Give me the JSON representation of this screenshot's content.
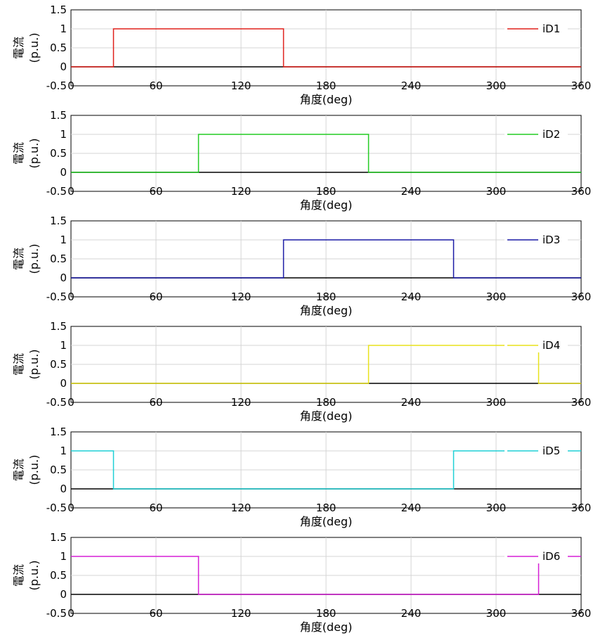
{
  "chart_data": [
    {
      "type": "line",
      "xlabel": "角度(deg)",
      "ylabel": "電流\n(p.u.)",
      "xlim": [
        0,
        360
      ],
      "ylim": [
        -0.5,
        1.5
      ],
      "xticks": [
        "0",
        "60",
        "120",
        "180",
        "240",
        "300",
        "360"
      ],
      "yticks": [
        "1.5",
        "1",
        "0.5",
        "0",
        "-0.5"
      ],
      "grid": true,
      "legend_position": "right",
      "series": [
        {
          "name": "iD1",
          "color": "#e0201b",
          "points": [
            [
              0,
              0
            ],
            [
              30,
              0
            ],
            [
              30,
              1
            ],
            [
              150,
              1
            ],
            [
              150,
              0
            ],
            [
              360,
              0
            ]
          ]
        }
      ]
    },
    {
      "type": "line",
      "xlabel": "角度(deg)",
      "ylabel": "電流\n(p.u.)",
      "xlim": [
        0,
        360
      ],
      "ylim": [
        -0.5,
        1.5
      ],
      "xticks": [
        "0",
        "60",
        "120",
        "180",
        "240",
        "300",
        "360"
      ],
      "yticks": [
        "1.5",
        "1",
        "0.5",
        "0",
        "-0.5"
      ],
      "grid": true,
      "legend_position": "right",
      "series": [
        {
          "name": "iD2",
          "color": "#22cc22",
          "points": [
            [
              0,
              0
            ],
            [
              90,
              0
            ],
            [
              90,
              1
            ],
            [
              210,
              1
            ],
            [
              210,
              0
            ],
            [
              360,
              0
            ]
          ]
        }
      ]
    },
    {
      "type": "line",
      "xlabel": "角度(deg)",
      "ylabel": "電流\n(p.u.)",
      "xlim": [
        0,
        360
      ],
      "ylim": [
        -0.5,
        1.5
      ],
      "xticks": [
        "0",
        "60",
        "120",
        "180",
        "240",
        "300",
        "360"
      ],
      "yticks": [
        "1.5",
        "1",
        "0.5",
        "0",
        "-0.5"
      ],
      "grid": true,
      "legend_position": "right",
      "series": [
        {
          "name": "iD3",
          "color": "#1a1aa6",
          "points": [
            [
              0,
              0
            ],
            [
              150,
              0
            ],
            [
              150,
              1
            ],
            [
              270,
              1
            ],
            [
              270,
              0
            ],
            [
              360,
              0
            ]
          ]
        }
      ]
    },
    {
      "type": "line",
      "xlabel": "角度(deg)",
      "ylabel": "電流\n(p.u.)",
      "xlim": [
        0,
        360
      ],
      "ylim": [
        -0.5,
        1.5
      ],
      "xticks": [
        "0",
        "60",
        "120",
        "180",
        "240",
        "300",
        "360"
      ],
      "yticks": [
        "1.5",
        "1",
        "0.5",
        "0",
        "-0.5"
      ],
      "grid": true,
      "legend_position": "right",
      "series": [
        {
          "name": "iD4",
          "color": "#e8e21a",
          "points": [
            [
              0,
              0
            ],
            [
              210,
              0
            ],
            [
              210,
              1
            ],
            [
              330,
              1
            ],
            [
              330,
              0
            ],
            [
              360,
              0
            ]
          ]
        }
      ]
    },
    {
      "type": "line",
      "xlabel": "角度(deg)",
      "ylabel": "電流\n(p.u.)",
      "xlim": [
        0,
        360
      ],
      "ylim": [
        -0.5,
        1.5
      ],
      "xticks": [
        "0",
        "60",
        "120",
        "180",
        "240",
        "300",
        "360"
      ],
      "yticks": [
        "1.5",
        "1",
        "0.5",
        "0",
        "-0.5"
      ],
      "grid": true,
      "legend_position": "right",
      "series": [
        {
          "name": "iD5",
          "color": "#1ed0d6",
          "points": [
            [
              0,
              1
            ],
            [
              30,
              1
            ],
            [
              30,
              0
            ],
            [
              270,
              0
            ],
            [
              270,
              1
            ],
            [
              360,
              1
            ]
          ]
        }
      ]
    },
    {
      "type": "line",
      "xlabel": "角度(deg)",
      "ylabel": "電流\n(p.u.)",
      "xlim": [
        0,
        360
      ],
      "ylim": [
        -0.5,
        1.5
      ],
      "xticks": [
        "0",
        "60",
        "120",
        "180",
        "240",
        "300",
        "360"
      ],
      "yticks": [
        "1.5",
        "1",
        "0.5",
        "0",
        "-0.5"
      ],
      "grid": true,
      "legend_position": "right",
      "series": [
        {
          "name": "iD6",
          "color": "#d61ed6",
          "points": [
            [
              0,
              1
            ],
            [
              90,
              1
            ],
            [
              90,
              0
            ],
            [
              330,
              0
            ],
            [
              330,
              1
            ],
            [
              360,
              1
            ]
          ]
        }
      ]
    }
  ]
}
